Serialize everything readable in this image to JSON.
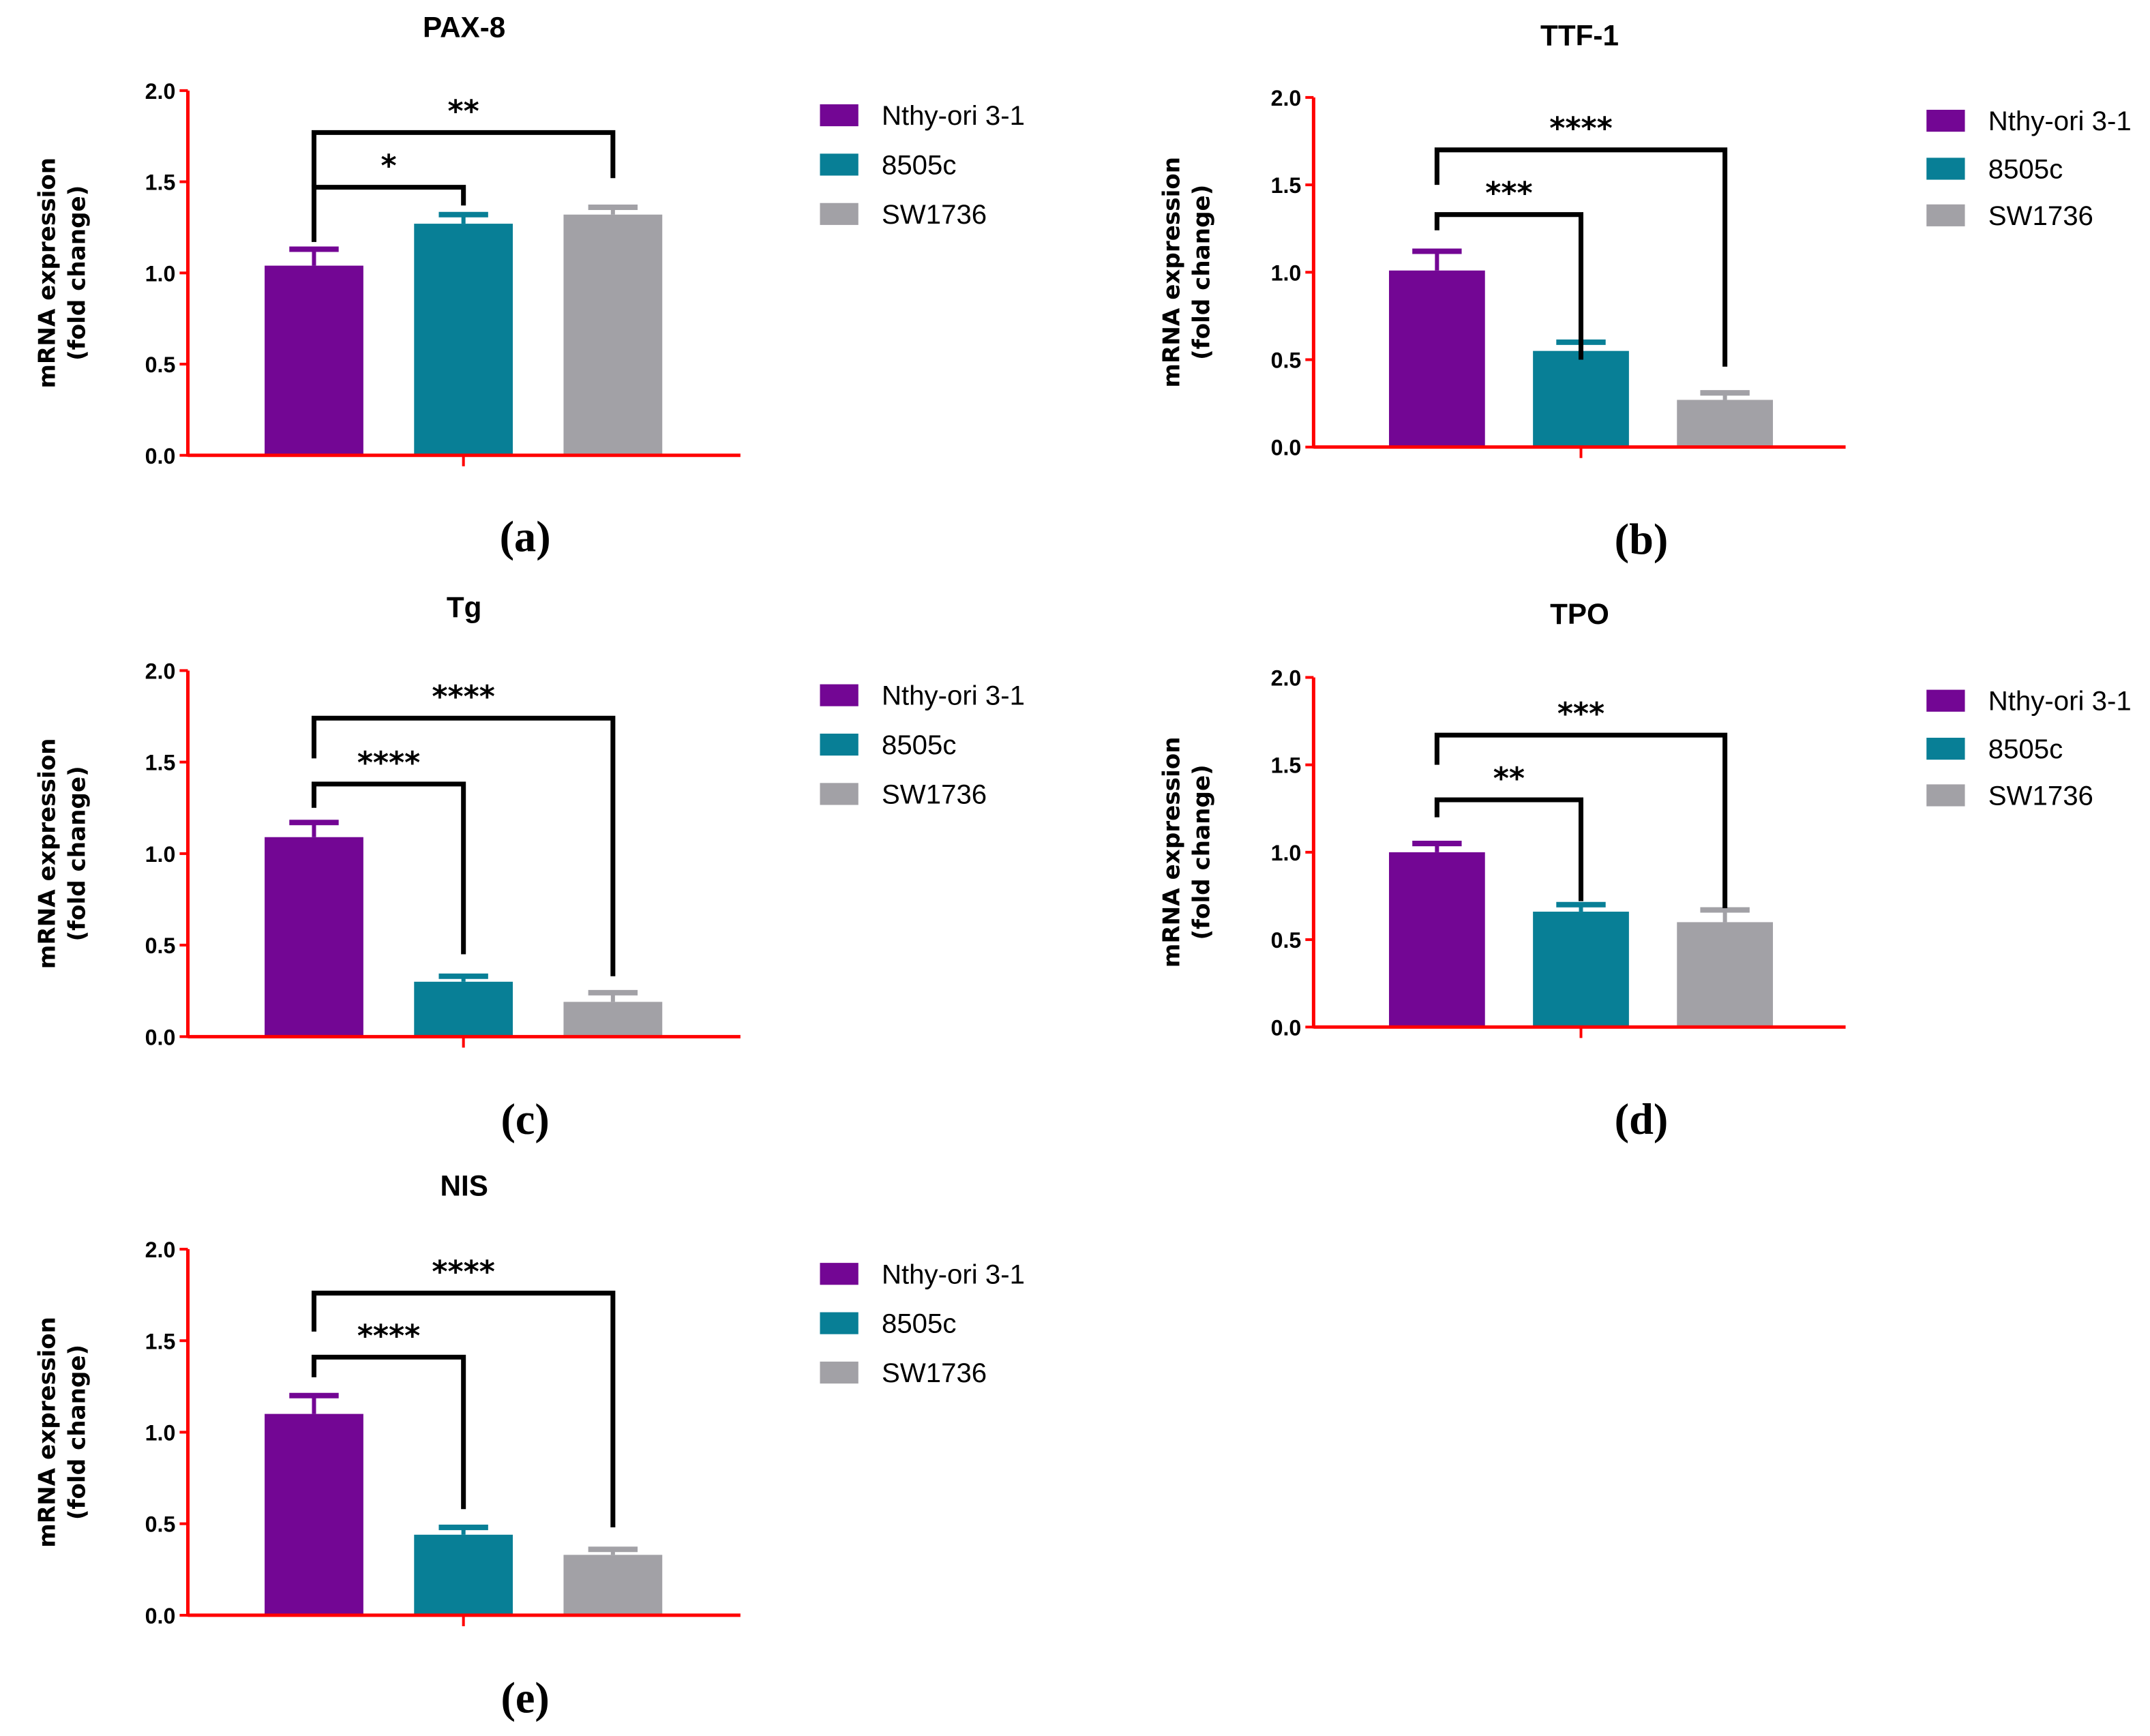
{
  "chart_data": [
    {
      "type": "bar",
      "panel_label": "(a)",
      "title": "PAX-8",
      "ylabel": [
        "mRNA expression",
        "(fold change)"
      ],
      "ylim": [
        0,
        2.0
      ],
      "yticks": [
        "0.0",
        "0.5",
        "1.0",
        "1.5",
        "2.0"
      ],
      "series": [
        {
          "name": "Nthy-ori 3-1",
          "value": 1.04,
          "error": 0.09
        },
        {
          "name": "8505c",
          "value": 1.27,
          "error": 0.05
        },
        {
          "name": "SW1736",
          "value": 1.32,
          "error": 0.04
        }
      ],
      "comparisons": [
        {
          "from": 0,
          "to": 1,
          "label": "*",
          "level": 1.47,
          "left_end": 1.17,
          "right_end": 1.37
        },
        {
          "from": 0,
          "to": 2,
          "label": "**",
          "level": 1.77,
          "left_end": 1.47,
          "right_end": 1.52
        }
      ]
    },
    {
      "type": "bar",
      "panel_label": "(b)",
      "title": "TTF-1",
      "ylabel": [
        "mRNA expression",
        "(fold change)"
      ],
      "ylim": [
        0,
        2.0
      ],
      "yticks": [
        "0.0",
        "0.5",
        "1.0",
        "1.5",
        "2.0"
      ],
      "series": [
        {
          "name": "Nthy-ori 3-1",
          "value": 1.01,
          "error": 0.11
        },
        {
          "name": "8505c",
          "value": 0.55,
          "error": 0.05
        },
        {
          "name": "SW1736",
          "value": 0.27,
          "error": 0.04
        }
      ],
      "comparisons": [
        {
          "from": 0,
          "to": 1,
          "label": "***",
          "level": 1.33,
          "left_end": 1.24,
          "right_end": 0.5
        },
        {
          "from": 0,
          "to": 2,
          "label": "****",
          "level": 1.7,
          "left_end": 1.5,
          "right_end": 0.46
        }
      ]
    },
    {
      "type": "bar",
      "panel_label": "(c)",
      "title": "Tg",
      "ylabel": [
        "mRNA expression",
        "(fold change)"
      ],
      "ylim": [
        0,
        2.0
      ],
      "yticks": [
        "0.0",
        "0.5",
        "1.0",
        "1.5",
        "2.0"
      ],
      "series": [
        {
          "name": "Nthy-ori 3-1",
          "value": 1.09,
          "error": 0.08
        },
        {
          "name": "8505c",
          "value": 0.3,
          "error": 0.03
        },
        {
          "name": "SW1736",
          "value": 0.19,
          "error": 0.05
        }
      ],
      "comparisons": [
        {
          "from": 0,
          "to": 1,
          "label": "****",
          "level": 1.38,
          "left_end": 1.25,
          "right_end": 0.45
        },
        {
          "from": 0,
          "to": 2,
          "label": "****",
          "level": 1.74,
          "left_end": 1.52,
          "right_end": 0.33
        }
      ]
    },
    {
      "type": "bar",
      "panel_label": "(d)",
      "title": "TPO",
      "ylabel": [
        "mRNA expression",
        "(fold change)"
      ],
      "ylim": [
        0,
        2.0
      ],
      "yticks": [
        "0.0",
        "0.5",
        "1.0",
        "1.5",
        "2.0"
      ],
      "series": [
        {
          "name": "Nthy-ori 3-1",
          "value": 1.0,
          "error": 0.05
        },
        {
          "name": "8505c",
          "value": 0.66,
          "error": 0.04
        },
        {
          "name": "SW1736",
          "value": 0.6,
          "error": 0.07
        }
      ],
      "comparisons": [
        {
          "from": 0,
          "to": 1,
          "label": "**",
          "level": 1.3,
          "left_end": 1.2,
          "right_end": 0.72
        },
        {
          "from": 0,
          "to": 2,
          "label": "***",
          "level": 1.67,
          "left_end": 1.5,
          "right_end": 0.68
        }
      ]
    },
    {
      "type": "bar",
      "panel_label": "(e)",
      "title": "NIS",
      "ylabel": [
        "mRNA expression",
        "(fold change)"
      ],
      "ylim": [
        0,
        2.0
      ],
      "yticks": [
        "0.0",
        "0.5",
        "1.0",
        "1.5",
        "2.0"
      ],
      "series": [
        {
          "name": "Nthy-ori 3-1",
          "value": 1.1,
          "error": 0.1
        },
        {
          "name": "8505c",
          "value": 0.44,
          "error": 0.04
        },
        {
          "name": "SW1736",
          "value": 0.33,
          "error": 0.03
        }
      ],
      "comparisons": [
        {
          "from": 0,
          "to": 1,
          "label": "****",
          "level": 1.41,
          "left_end": 1.3,
          "right_end": 0.58
        },
        {
          "from": 0,
          "to": 2,
          "label": "****",
          "level": 1.76,
          "left_end": 1.55,
          "right_end": 0.48
        }
      ]
    }
  ],
  "colors": {
    "Nthy-ori 3-1": "#730694",
    "8505c": "#087f96",
    "SW1736": "#a2a1a6",
    "axis": "#ff0000",
    "bracket": "#000000"
  }
}
